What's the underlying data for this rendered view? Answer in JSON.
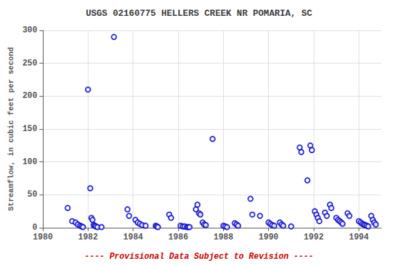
{
  "chart_data": {
    "type": "scatter",
    "title": "USGS 02160775 HELLERS CREEK NR POMARIA, SC",
    "ylabel": "Streamflow, in cubic feet per second",
    "annotations": [
      {
        "text": "---- Provisional Data Subject to Revision ----",
        "color": "#CC0000"
      }
    ],
    "xlim": [
      1980,
      1995
    ],
    "xticks": [
      1980,
      1982,
      1984,
      1986,
      1988,
      1990,
      1992,
      1994
    ],
    "ylim": [
      0,
      300
    ],
    "yticks": [
      0,
      50,
      100,
      150,
      200,
      250,
      300
    ],
    "grid": true,
    "marker": "circle",
    "color": "#0000CC",
    "x": [
      1981.1,
      1981.3,
      1981.45,
      1981.55,
      1981.65,
      1981.72,
      1981.78,
      1982.0,
      1982.1,
      1982.15,
      1982.2,
      1982.25,
      1982.3,
      1982.35,
      1982.42,
      1982.6,
      1983.15,
      1983.75,
      1983.82,
      1984.1,
      1984.2,
      1984.3,
      1984.4,
      1984.55,
      1985.0,
      1985.05,
      1985.1,
      1985.6,
      1985.68,
      1986.1,
      1986.2,
      1986.28,
      1986.38,
      1986.44,
      1986.5,
      1986.78,
      1986.85,
      1986.92,
      1986.98,
      1987.08,
      1987.15,
      1987.22,
      1987.52,
      1988.0,
      1988.08,
      1988.16,
      1988.5,
      1988.58,
      1988.65,
      1989.2,
      1989.28,
      1989.62,
      1990.0,
      1990.08,
      1990.16,
      1990.25,
      1990.5,
      1990.58,
      1990.65,
      1991.0,
      1991.38,
      1991.45,
      1991.72,
      1991.85,
      1991.92,
      1992.05,
      1992.12,
      1992.18,
      1992.25,
      1992.5,
      1992.58,
      1992.72,
      1992.78,
      1993.0,
      1993.08,
      1993.15,
      1993.22,
      1993.28,
      1993.5,
      1993.58,
      1994.0,
      1994.08,
      1994.15,
      1994.22,
      1994.28,
      1994.35,
      1994.42,
      1994.55,
      1994.62,
      1994.68,
      1994.75
    ],
    "values": [
      30,
      10,
      8,
      5,
      3,
      2,
      1,
      210,
      60,
      15,
      12,
      4,
      3,
      2,
      1,
      1,
      290,
      28,
      18,
      12,
      8,
      6,
      4,
      3,
      3,
      2,
      1,
      20,
      15,
      3,
      2,
      2,
      1,
      1,
      1,
      28,
      35,
      22,
      20,
      8,
      5,
      4,
      135,
      3,
      2,
      1,
      7,
      5,
      3,
      44,
      20,
      18,
      8,
      6,
      4,
      3,
      8,
      5,
      3,
      2,
      122,
      115,
      72,
      125,
      118,
      25,
      20,
      15,
      10,
      23,
      18,
      35,
      30,
      15,
      12,
      10,
      8,
      6,
      22,
      18,
      10,
      8,
      6,
      5,
      4,
      3,
      2,
      18,
      12,
      8,
      5
    ]
  }
}
